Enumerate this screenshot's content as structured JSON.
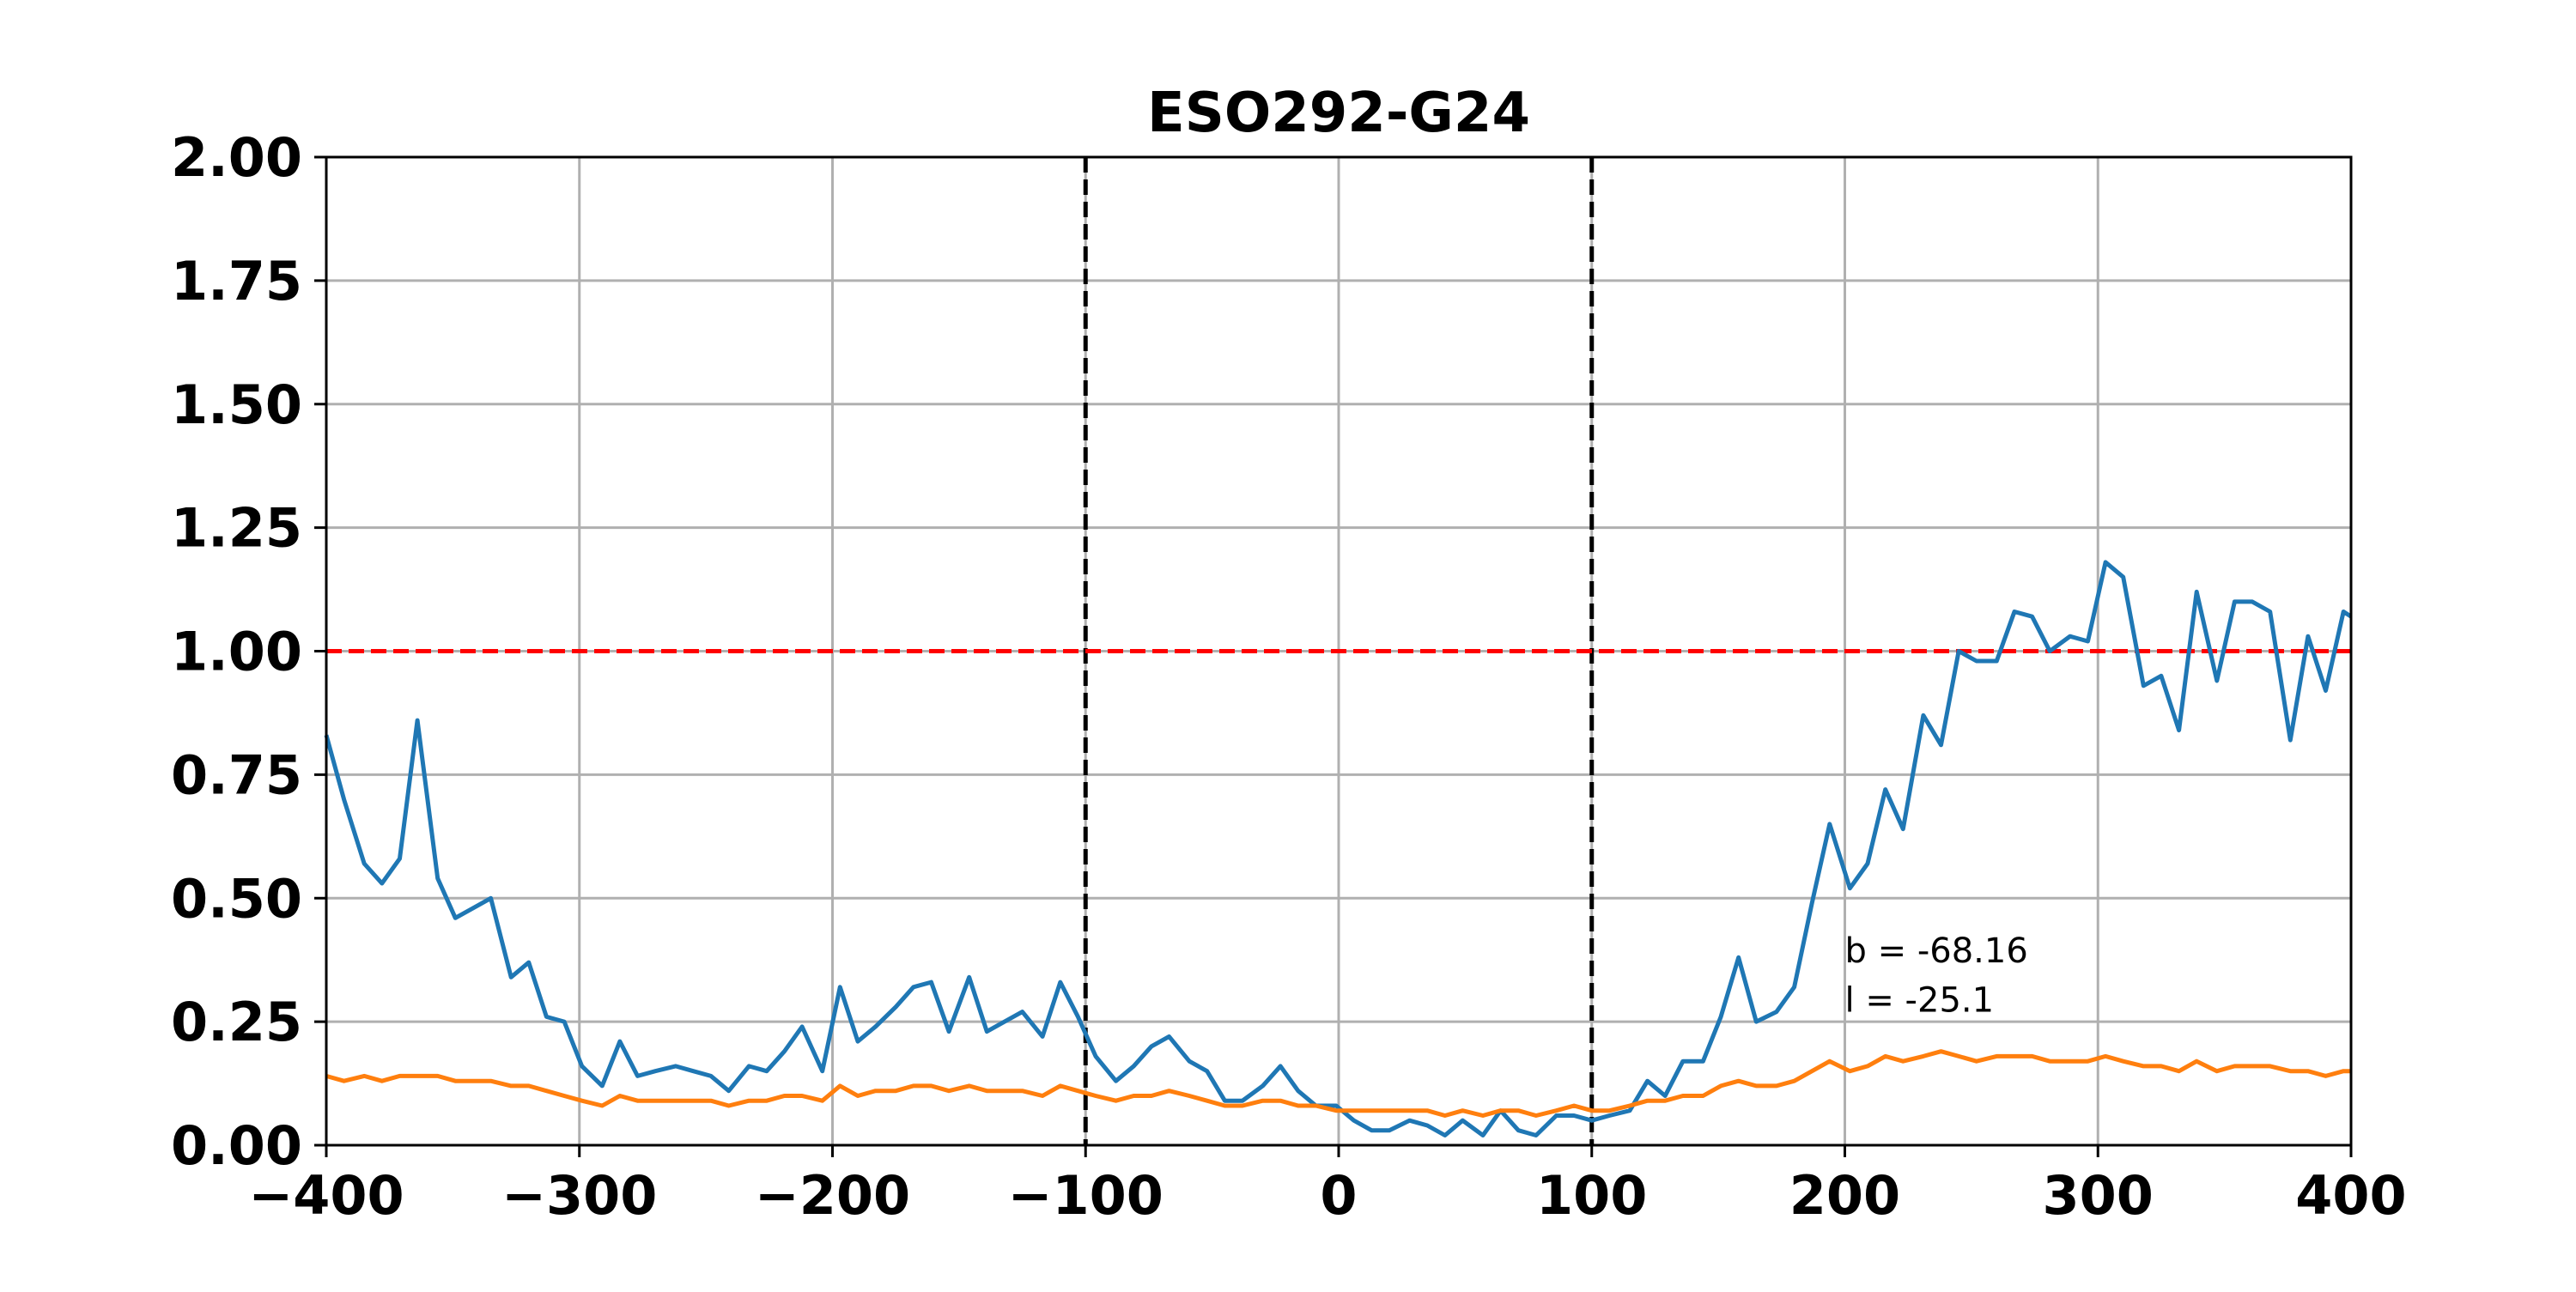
{
  "chart_data": {
    "type": "line",
    "title": "ESO292-G24",
    "xlabel": "",
    "ylabel": "",
    "xlim": [
      -400,
      400
    ],
    "ylim": [
      0,
      2
    ],
    "grid": true,
    "xticks": [
      -400,
      -300,
      -200,
      -100,
      0,
      100,
      200,
      300,
      400
    ],
    "yticks": [
      0.0,
      0.25,
      0.5,
      0.75,
      1.0,
      1.25,
      1.5,
      1.75,
      2.0
    ],
    "xtick_labels": [
      "−400",
      "−300",
      "−200",
      "−100",
      "0",
      "100",
      "200",
      "300",
      "400"
    ],
    "ytick_labels": [
      "0.00",
      "0.25",
      "0.50",
      "0.75",
      "1.00",
      "1.25",
      "1.50",
      "1.75",
      "2.00"
    ],
    "hlines": [
      {
        "y": 1.0,
        "color": "#ff0000",
        "style": "dashed"
      }
    ],
    "vlines": [
      {
        "x": -100,
        "color": "#000000",
        "style": "dashed"
      },
      {
        "x": 100,
        "color": "#000000",
        "style": "dashed"
      }
    ],
    "annotations": [
      {
        "text": "b = -68.16",
        "x": 200,
        "y": 0.37
      },
      {
        "text": "l = -25.1",
        "x": 200,
        "y": 0.27
      }
    ],
    "series": [
      {
        "color": "#1f77b4",
        "x": [
          -400,
          -393,
          -385,
          -378,
          -371,
          -364,
          -356,
          -349,
          -342,
          -335,
          -327,
          -320,
          -313,
          -306,
          -299,
          -291,
          -284,
          -277,
          -270,
          -262,
          -255,
          -248,
          -241,
          -233,
          -226,
          -219,
          -212,
          -204,
          -197,
          -190,
          -183,
          -175,
          -168,
          -161,
          -154,
          -146,
          -139,
          -132,
          -125,
          -117,
          -110,
          -103,
          -96,
          -88,
          -81,
          -74,
          -67,
          -59,
          -52,
          -45,
          -38,
          -30,
          -23,
          -16,
          -9,
          -1,
          6,
          13,
          20,
          28,
          35,
          42,
          49,
          57,
          64,
          71,
          78,
          86,
          93,
          100,
          107,
          115,
          122,
          129,
          136,
          144,
          151,
          158,
          165,
          173,
          180,
          187,
          194,
          202,
          209,
          216,
          223,
          231,
          238,
          245,
          252,
          260,
          267,
          274,
          281,
          289,
          296,
          303,
          310,
          318,
          325,
          332,
          339,
          347,
          354,
          361,
          368,
          376,
          383,
          390,
          397,
          400
        ],
        "y": [
          0.83,
          0.7,
          0.57,
          0.53,
          0.58,
          0.86,
          0.54,
          0.46,
          0.48,
          0.5,
          0.34,
          0.37,
          0.26,
          0.25,
          0.16,
          0.12,
          0.21,
          0.14,
          0.15,
          0.16,
          0.15,
          0.14,
          0.11,
          0.16,
          0.15,
          0.19,
          0.24,
          0.15,
          0.32,
          0.21,
          0.24,
          0.28,
          0.32,
          0.33,
          0.23,
          0.34,
          0.23,
          0.25,
          0.27,
          0.22,
          0.33,
          0.26,
          0.18,
          0.13,
          0.16,
          0.2,
          0.22,
          0.17,
          0.15,
          0.09,
          0.09,
          0.12,
          0.16,
          0.11,
          0.08,
          0.08,
          0.05,
          0.03,
          0.03,
          0.05,
          0.04,
          0.02,
          0.05,
          0.02,
          0.07,
          0.03,
          0.02,
          0.06,
          0.06,
          0.05,
          0.06,
          0.07,
          0.13,
          0.1,
          0.17,
          0.17,
          0.26,
          0.38,
          0.25,
          0.27,
          0.32,
          0.49,
          0.65,
          0.52,
          0.57,
          0.72,
          0.64,
          0.87,
          0.81,
          1.0,
          0.98,
          0.98,
          1.08,
          1.07,
          1.0,
          1.03,
          1.02,
          1.18,
          1.15,
          0.93,
          0.95,
          0.84,
          1.12,
          0.94,
          1.1,
          1.1,
          1.08,
          0.82,
          1.03,
          0.92,
          1.08,
          1.07
        ]
      },
      {
        "color": "#ff7f0e",
        "x": [
          -400,
          -393,
          -385,
          -378,
          -371,
          -364,
          -356,
          -349,
          -342,
          -335,
          -327,
          -320,
          -313,
          -306,
          -299,
          -291,
          -284,
          -277,
          -270,
          -262,
          -255,
          -248,
          -241,
          -233,
          -226,
          -219,
          -212,
          -204,
          -197,
          -190,
          -183,
          -175,
          -168,
          -161,
          -154,
          -146,
          -139,
          -132,
          -125,
          -117,
          -110,
          -103,
          -96,
          -88,
          -81,
          -74,
          -67,
          -59,
          -52,
          -45,
          -38,
          -30,
          -23,
          -16,
          -9,
          -1,
          6,
          13,
          20,
          28,
          35,
          42,
          49,
          57,
          64,
          71,
          78,
          86,
          93,
          100,
          107,
          115,
          122,
          129,
          136,
          144,
          151,
          158,
          165,
          173,
          180,
          187,
          194,
          202,
          209,
          216,
          223,
          231,
          238,
          245,
          252,
          260,
          267,
          274,
          281,
          289,
          296,
          303,
          310,
          318,
          325,
          332,
          339,
          347,
          354,
          361,
          368,
          376,
          383,
          390,
          397,
          400
        ],
        "y": [
          0.14,
          0.13,
          0.14,
          0.13,
          0.14,
          0.14,
          0.14,
          0.13,
          0.13,
          0.13,
          0.12,
          0.12,
          0.11,
          0.1,
          0.09,
          0.08,
          0.1,
          0.09,
          0.09,
          0.09,
          0.09,
          0.09,
          0.08,
          0.09,
          0.09,
          0.1,
          0.1,
          0.09,
          0.12,
          0.1,
          0.11,
          0.11,
          0.12,
          0.12,
          0.11,
          0.12,
          0.11,
          0.11,
          0.11,
          0.1,
          0.12,
          0.11,
          0.1,
          0.09,
          0.1,
          0.1,
          0.11,
          0.1,
          0.09,
          0.08,
          0.08,
          0.09,
          0.09,
          0.08,
          0.08,
          0.07,
          0.07,
          0.07,
          0.07,
          0.07,
          0.07,
          0.06,
          0.07,
          0.06,
          0.07,
          0.07,
          0.06,
          0.07,
          0.08,
          0.07,
          0.07,
          0.08,
          0.09,
          0.09,
          0.1,
          0.1,
          0.12,
          0.13,
          0.12,
          0.12,
          0.13,
          0.15,
          0.17,
          0.15,
          0.16,
          0.18,
          0.17,
          0.18,
          0.19,
          0.18,
          0.17,
          0.18,
          0.18,
          0.18,
          0.17,
          0.17,
          0.17,
          0.18,
          0.17,
          0.16,
          0.16,
          0.15,
          0.17,
          0.15,
          0.16,
          0.16,
          0.16,
          0.15,
          0.15,
          0.14,
          0.15,
          0.15
        ]
      }
    ]
  }
}
